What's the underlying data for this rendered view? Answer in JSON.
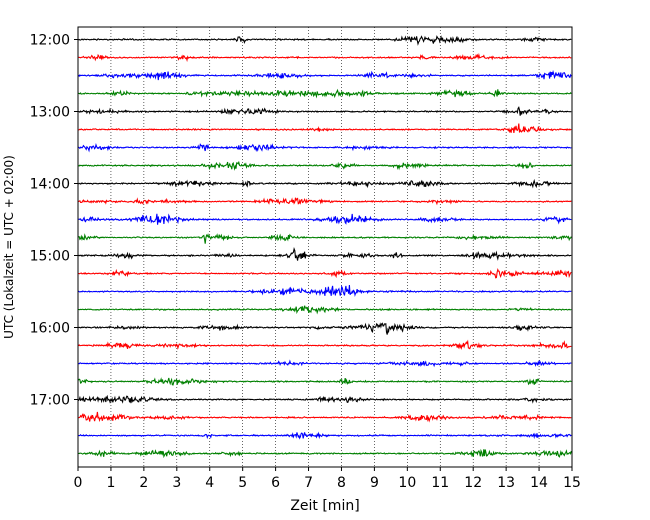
{
  "chart_data": {
    "type": "line",
    "xlabel": "Zeit  [min]",
    "ylabel": "UTC (Lokalzeit = UTC + 02:00)",
    "xlim": [
      0,
      15
    ],
    "x_ticks": [
      0,
      1,
      2,
      3,
      4,
      5,
      6,
      7,
      8,
      9,
      10,
      11,
      12,
      13,
      14,
      15
    ],
    "y_tick_labels": [
      "12:00",
      "13:00",
      "14:00",
      "15:00",
      "16:00",
      "17:00"
    ],
    "grid": "vertical dotted at each minute",
    "trace_interval_min": 15,
    "traces": [
      {
        "start": "12:00",
        "color": "#000000"
      },
      {
        "start": "12:15",
        "color": "#ff0000"
      },
      {
        "start": "12:30",
        "color": "#0000ff"
      },
      {
        "start": "12:45",
        "color": "#008000"
      },
      {
        "start": "13:00",
        "color": "#000000"
      },
      {
        "start": "13:15",
        "color": "#ff0000"
      },
      {
        "start": "13:30",
        "color": "#0000ff"
      },
      {
        "start": "13:45",
        "color": "#008000"
      },
      {
        "start": "14:00",
        "color": "#000000"
      },
      {
        "start": "14:15",
        "color": "#ff0000"
      },
      {
        "start": "14:30",
        "color": "#0000ff"
      },
      {
        "start": "14:45",
        "color": "#008000"
      },
      {
        "start": "15:00",
        "color": "#000000"
      },
      {
        "start": "15:15",
        "color": "#ff0000"
      },
      {
        "start": "15:30",
        "color": "#0000ff"
      },
      {
        "start": "15:45",
        "color": "#008000"
      },
      {
        "start": "16:00",
        "color": "#000000"
      },
      {
        "start": "16:15",
        "color": "#ff0000"
      },
      {
        "start": "16:30",
        "color": "#0000ff"
      },
      {
        "start": "16:45",
        "color": "#008000"
      },
      {
        "start": "17:00",
        "color": "#000000"
      },
      {
        "start": "17:15",
        "color": "#ff0000"
      },
      {
        "start": "17:30",
        "color": "#0000ff"
      },
      {
        "start": "17:45",
        "color": "#008000"
      }
    ],
    "notable_events_min": [
      3.2,
      3.5,
      4.7,
      8.7,
      9.7,
      12.2,
      13.1,
      13.4
    ]
  }
}
